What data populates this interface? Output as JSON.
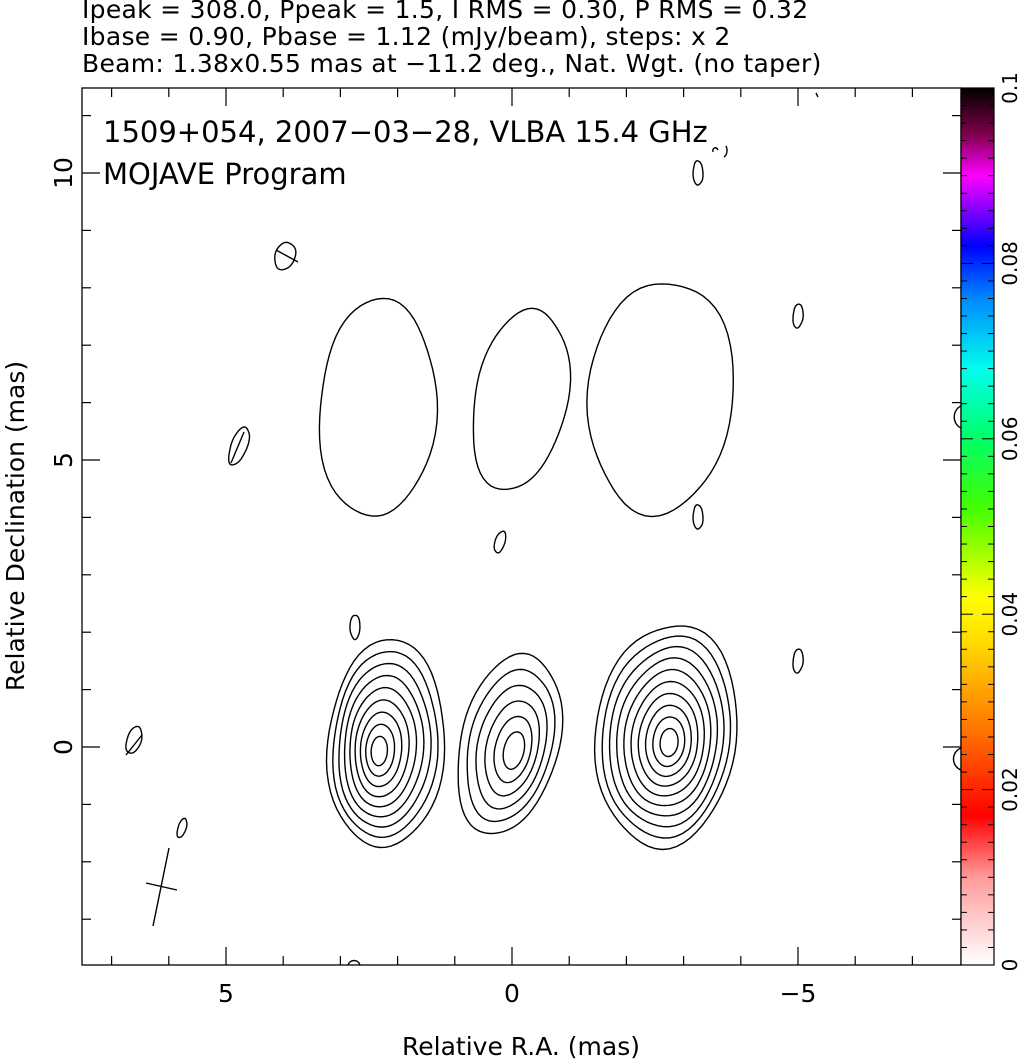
{
  "header": {
    "line1": "Ipeak = 308.0, Ppeak = 1.5, I RMS = 0.30, P RMS = 0.32",
    "line2": "Ibase = 0.90, Pbase = 1.12 (mJy/beam), steps: x 2",
    "line3": "Beam: 1.38x0.55 mas at −11.2 deg., Nat. Wgt. (no taper)"
  },
  "plot": {
    "title_line1": "1509+054, 2007−03−28, VLBA 15.4 GHz",
    "title_line2": "MOJAVE Program",
    "xlabel": "Relative R.A. (mas)",
    "ylabel": "Relative Declination (mas)"
  },
  "colorbar": {
    "label": "",
    "range": [
      0,
      0.1
    ],
    "ticks": [
      "0",
      "0.02",
      "0.04",
      "0.06",
      "0.08",
      "0.1"
    ],
    "colors": {
      "low": "#ffffff",
      "red": "#ff0000",
      "orange": "#ff8800",
      "yellow": "#ffff00",
      "green": "#00ff00",
      "cyan": "#00ffff",
      "blue": "#0000ff",
      "magenta": "#ff00ff",
      "high": "#000000"
    }
  },
  "chart_data": {
    "type": "contour",
    "x_axis": {
      "label": "Relative R.A. (mas)",
      "range": [
        7.6,
        -7.8
      ],
      "reversed": true,
      "ticks": [
        5,
        0,
        -5
      ],
      "tick_labels": [
        "5",
        "0",
        "−5"
      ]
    },
    "y_axis": {
      "label": "Relative Declination (mas)",
      "range": [
        -3.8,
        11.5
      ],
      "ticks": [
        0,
        5,
        10
      ],
      "tick_labels": [
        "0",
        "5",
        "10"
      ]
    },
    "stokes_i_peak_mJy_per_beam": 308.0,
    "polarized_peak_mJy_per_beam": 1.5,
    "contour_base_mJy_per_beam": 0.9,
    "contour_step_factor": 2,
    "beam": {
      "major_mas": 1.38,
      "minor_mas": 0.55,
      "pa_deg": -11.2
    },
    "total_intensity_sources": [
      {
        "x": 2.2,
        "y": 0.05,
        "levels": 9
      },
      {
        "x": 0.05,
        "y": 0.05,
        "levels": 6
      },
      {
        "x": -2.7,
        "y": 0.2,
        "levels": 10
      }
    ],
    "upper_sources": [
      {
        "x": 2.35,
        "y": 5.9
      },
      {
        "x": -0.15,
        "y": 6.05
      },
      {
        "x": -2.6,
        "y": 6.1
      }
    ]
  }
}
